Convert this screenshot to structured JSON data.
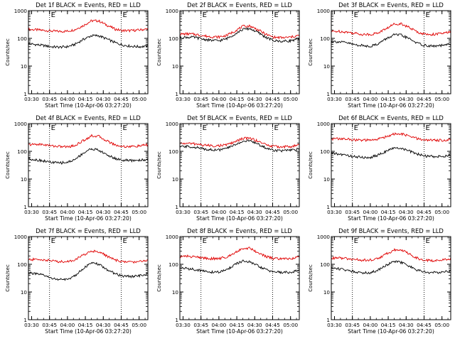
{
  "chart_data": [
    {
      "type": "line",
      "title": "Det 1f BLACK = Events, RED = LLD",
      "xlabel": "Start Time (10-Apr-06 03:27:20)",
      "ylabel": "Counts/sec",
      "yscale": "log",
      "ylim": [
        1,
        1000
      ],
      "x_ticks": [
        "03:30",
        "03:45",
        "04:00",
        "04:15",
        "04:30",
        "04:45",
        "05:00"
      ],
      "y_ticks": [
        "1",
        "10",
        "100",
        "1000"
      ],
      "markers": [
        {
          "time": "03:45",
          "label": "E"
        },
        {
          "time": "04:45",
          "label": "E"
        }
      ],
      "x": [
        "03:27",
        "03:33",
        "03:40",
        "03:46",
        "03:53",
        "04:00",
        "04:06",
        "04:13",
        "04:20",
        "04:26",
        "04:33",
        "04:40",
        "04:46",
        "04:53",
        "05:00",
        "05:06"
      ],
      "series": [
        {
          "name": "LLD",
          "color": "#e00000",
          "values": [
            210,
            205,
            195,
            185,
            178,
            182,
            205,
            285,
            430,
            430,
            300,
            215,
            190,
            190,
            200,
            215
          ]
        },
        {
          "name": "Events",
          "color": "#000000",
          "values": [
            65,
            60,
            55,
            50,
            48,
            50,
            60,
            90,
            125,
            125,
            95,
            70,
            58,
            52,
            50,
            52
          ]
        }
      ]
    },
    {
      "type": "line",
      "title": "Det 2f BLACK = Events, RED = LLD",
      "xlabel": "Start Time (10-Apr-06 03:27:20)",
      "ylabel": "Counts/sec",
      "yscale": "log",
      "ylim": [
        1,
        1000
      ],
      "x_ticks": [
        "03:30",
        "03:45",
        "04:00",
        "04:15",
        "04:30",
        "04:45",
        "05:00"
      ],
      "y_ticks": [
        "1",
        "10",
        "100",
        "1000"
      ],
      "markers": [
        {
          "time": "03:45",
          "label": "E"
        },
        {
          "time": "04:45",
          "label": "E"
        }
      ],
      "x": [
        "03:27",
        "03:33",
        "03:40",
        "03:46",
        "03:53",
        "04:00",
        "04:06",
        "04:13",
        "04:20",
        "04:26",
        "04:33",
        "04:40",
        "04:46",
        "04:53",
        "05:00",
        "05:06"
      ],
      "series": [
        {
          "name": "LLD",
          "color": "#e00000",
          "values": [
            140,
            145,
            140,
            125,
            115,
            112,
            125,
            180,
            270,
            280,
            200,
            135,
            110,
            105,
            110,
            125
          ]
        },
        {
          "name": "Events",
          "color": "#000000",
          "values": [
            105,
            110,
            108,
            95,
            85,
            82,
            95,
            140,
            210,
            225,
            160,
            105,
            82,
            78,
            82,
            95
          ]
        }
      ]
    },
    {
      "type": "line",
      "title": "Det 3f BLACK = Events, RED = LLD",
      "xlabel": "Start Time (10-Apr-06 03:27:20)",
      "ylabel": "Counts/sec",
      "yscale": "log",
      "ylim": [
        1,
        1000
      ],
      "x_ticks": [
        "03:30",
        "03:45",
        "04:00",
        "04:15",
        "04:30",
        "04:45",
        "05:00"
      ],
      "y_ticks": [
        "1",
        "10",
        "100",
        "1000"
      ],
      "markers": [
        {
          "time": "03:45",
          "label": "E"
        },
        {
          "time": "04:45",
          "label": "E"
        }
      ],
      "x": [
        "03:27",
        "03:33",
        "03:40",
        "03:46",
        "03:53",
        "04:00",
        "04:06",
        "04:13",
        "04:20",
        "04:26",
        "04:33",
        "04:40",
        "04:46",
        "04:53",
        "05:00",
        "05:06"
      ],
      "series": [
        {
          "name": "LLD",
          "color": "#e00000",
          "values": [
            175,
            180,
            170,
            155,
            140,
            138,
            155,
            220,
            330,
            340,
            240,
            165,
            140,
            140,
            150,
            165
          ]
        },
        {
          "name": "Events",
          "color": "#000000",
          "values": [
            80,
            75,
            70,
            60,
            55,
            52,
            62,
            95,
            135,
            130,
            95,
            65,
            55,
            52,
            55,
            60
          ]
        }
      ]
    },
    {
      "type": "line",
      "title": "Det 4f BLACK = Events, RED = LLD",
      "xlabel": "Start Time (10-Apr-06 03:27:20)",
      "ylabel": "Counts/sec",
      "yscale": "log",
      "ylim": [
        1,
        1000
      ],
      "x_ticks": [
        "03:30",
        "03:45",
        "04:00",
        "04:15",
        "04:30",
        "04:45",
        "05:00"
      ],
      "y_ticks": [
        "1",
        "10",
        "100",
        "1000"
      ],
      "markers": [
        {
          "time": "03:45",
          "label": "E"
        },
        {
          "time": "04:45",
          "label": "E"
        }
      ],
      "x": [
        "03:27",
        "03:33",
        "03:40",
        "03:46",
        "03:53",
        "04:00",
        "04:06",
        "04:13",
        "04:20",
        "04:26",
        "04:33",
        "04:40",
        "04:46",
        "04:53",
        "05:00",
        "05:06"
      ],
      "series": [
        {
          "name": "LLD",
          "color": "#e00000",
          "values": [
            170,
            180,
            175,
            160,
            150,
            145,
            160,
            240,
            360,
            350,
            240,
            170,
            150,
            148,
            155,
            170
          ]
        },
        {
          "name": "Events",
          "color": "#000000",
          "values": [
            55,
            50,
            45,
            40,
            38,
            40,
            50,
            85,
            125,
            110,
            75,
            55,
            48,
            46,
            48,
            50
          ]
        }
      ]
    },
    {
      "type": "line",
      "title": "Det 5f BLACK = Events, RED = LLD",
      "xlabel": "Start Time (10-Apr-06 03:27:20)",
      "ylabel": "Counts/sec",
      "yscale": "log",
      "ylim": [
        1,
        1000
      ],
      "x_ticks": [
        "03:30",
        "03:45",
        "04:00",
        "04:15",
        "04:30",
        "04:45",
        "05:00"
      ],
      "y_ticks": [
        "1",
        "10",
        "100",
        "1000"
      ],
      "markers": [
        {
          "time": "03:45",
          "label": "E"
        },
        {
          "time": "04:45",
          "label": "E"
        }
      ],
      "x": [
        "03:27",
        "03:33",
        "03:40",
        "03:46",
        "03:53",
        "04:00",
        "04:06",
        "04:13",
        "04:20",
        "04:26",
        "04:33",
        "04:40",
        "04:46",
        "04:53",
        "05:00",
        "05:06"
      ],
      "series": [
        {
          "name": "LLD",
          "color": "#e00000",
          "values": [
            190,
            195,
            185,
            170,
            160,
            158,
            170,
            215,
            290,
            300,
            230,
            170,
            150,
            145,
            148,
            165
          ]
        },
        {
          "name": "Events",
          "color": "#000000",
          "values": [
            145,
            150,
            140,
            125,
            115,
            112,
            125,
            170,
            230,
            240,
            180,
            128,
            110,
            105,
            108,
            120
          ]
        }
      ]
    },
    {
      "type": "line",
      "title": "Det 6f BLACK = Events, RED = LLD",
      "xlabel": "Start Time (10-Apr-06 03:27:20)",
      "ylabel": "Counts/sec",
      "yscale": "log",
      "ylim": [
        1,
        1000
      ],
      "x_ticks": [
        "03:30",
        "03:45",
        "04:00",
        "04:15",
        "04:30",
        "04:45",
        "05:00"
      ],
      "y_ticks": [
        "1",
        "10",
        "100",
        "1000"
      ],
      "markers": [
        {
          "time": "03:45",
          "label": "E"
        },
        {
          "time": "04:45",
          "label": "E"
        }
      ],
      "x": [
        "03:27",
        "03:33",
        "03:40",
        "03:46",
        "03:53",
        "04:00",
        "04:06",
        "04:13",
        "04:20",
        "04:26",
        "04:33",
        "04:40",
        "04:46",
        "04:53",
        "05:00",
        "05:06"
      ],
      "series": [
        {
          "name": "LLD",
          "color": "#e00000",
          "values": [
            280,
            285,
            275,
            260,
            250,
            250,
            270,
            340,
            420,
            420,
            350,
            280,
            255,
            250,
            250,
            265
          ]
        },
        {
          "name": "Events",
          "color": "#000000",
          "values": [
            85,
            80,
            72,
            65,
            60,
            60,
            72,
            100,
            130,
            130,
            100,
            78,
            68,
            65,
            65,
            70
          ]
        }
      ]
    },
    {
      "type": "line",
      "title": "Det 7f BLACK = Events, RED = LLD",
      "xlabel": "Start Time (10-Apr-06 03:27:20)",
      "ylabel": "Counts/sec",
      "yscale": "log",
      "ylim": [
        1,
        1000
      ],
      "x_ticks": [
        "03:30",
        "03:45",
        "04:00",
        "04:15",
        "04:30",
        "04:45",
        "05:00"
      ],
      "y_ticks": [
        "1",
        "10",
        "100",
        "1000"
      ],
      "markers": [
        {
          "time": "03:45",
          "label": "E"
        },
        {
          "time": "04:45",
          "label": "E"
        }
      ],
      "x": [
        "03:27",
        "03:33",
        "03:40",
        "03:46",
        "03:53",
        "04:00",
        "04:06",
        "04:13",
        "04:20",
        "04:26",
        "04:33",
        "04:40",
        "04:46",
        "04:53",
        "05:00",
        "05:06"
      ],
      "series": [
        {
          "name": "LLD",
          "color": "#e00000",
          "values": [
            145,
            150,
            145,
            135,
            125,
            125,
            145,
            210,
            300,
            290,
            200,
            140,
            125,
            120,
            125,
            140
          ]
        },
        {
          "name": "Events",
          "color": "#000000",
          "values": [
            50,
            45,
            40,
            32,
            28,
            28,
            38,
            70,
            110,
            100,
            65,
            45,
            38,
            36,
            38,
            45
          ]
        }
      ]
    },
    {
      "type": "line",
      "title": "Det 8f BLACK = Events, RED = LLD",
      "xlabel": "Start Time (10-Apr-06 03:27:20)",
      "ylabel": "Counts/sec",
      "yscale": "log",
      "ylim": [
        1,
        1000
      ],
      "x_ticks": [
        "03:30",
        "03:45",
        "04:00",
        "04:15",
        "04:30",
        "04:45",
        "05:00"
      ],
      "y_ticks": [
        "1",
        "10",
        "100",
        "1000"
      ],
      "markers": [
        {
          "time": "03:45",
          "label": "E"
        },
        {
          "time": "04:45",
          "label": "E"
        }
      ],
      "x": [
        "03:27",
        "03:33",
        "03:40",
        "03:46",
        "03:53",
        "04:00",
        "04:06",
        "04:13",
        "04:20",
        "04:26",
        "04:33",
        "04:40",
        "04:46",
        "04:53",
        "05:00",
        "05:06"
      ],
      "series": [
        {
          "name": "LLD",
          "color": "#e00000",
          "values": [
            190,
            195,
            185,
            170,
            160,
            160,
            180,
            260,
            380,
            380,
            260,
            185,
            160,
            155,
            160,
            180
          ]
        },
        {
          "name": "Events",
          "color": "#000000",
          "values": [
            75,
            70,
            65,
            58,
            52,
            52,
            62,
            95,
            130,
            120,
            85,
            62,
            54,
            50,
            52,
            58
          ]
        }
      ]
    },
    {
      "type": "line",
      "title": "Det 9f BLACK = Events, RED = LLD",
      "xlabel": "Start Time (10-Apr-06 03:27:20)",
      "ylabel": "Counts/sec",
      "yscale": "log",
      "ylim": [
        1,
        1000
      ],
      "x_ticks": [
        "03:30",
        "03:45",
        "04:00",
        "04:15",
        "04:30",
        "04:45",
        "05:00"
      ],
      "y_ticks": [
        "1",
        "10",
        "100",
        "1000"
      ],
      "markers": [
        {
          "time": "03:45",
          "label": "E"
        },
        {
          "time": "04:45",
          "label": "E"
        }
      ],
      "x": [
        "03:27",
        "03:33",
        "03:40",
        "03:46",
        "03:53",
        "04:00",
        "04:06",
        "04:13",
        "04:20",
        "04:26",
        "04:33",
        "04:40",
        "04:46",
        "04:53",
        "05:00",
        "05:06"
      ],
      "series": [
        {
          "name": "LLD",
          "color": "#e00000",
          "values": [
            165,
            170,
            160,
            150,
            140,
            140,
            160,
            230,
            330,
            330,
            230,
            160,
            140,
            135,
            140,
            160
          ]
        },
        {
          "name": "Events",
          "color": "#000000",
          "values": [
            75,
            70,
            62,
            55,
            50,
            50,
            60,
            92,
            125,
            118,
            82,
            60,
            52,
            50,
            52,
            58
          ]
        }
      ]
    }
  ]
}
